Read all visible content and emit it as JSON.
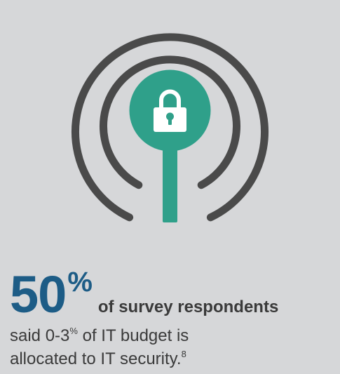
{
  "colors": {
    "background": "#d6d7d9",
    "arcs": "#4a4a4a",
    "lock_badge": "#2fa08a",
    "stat_number": "#1d5c86",
    "text": "#3a3a3a"
  },
  "graphic": {
    "icon": "padlock-signal-icon"
  },
  "stat": {
    "number": "50",
    "unit": "%",
    "headline": "of survey respondents"
  },
  "description": {
    "part1": "said 0-3",
    "part1_sup": "%",
    "part2": " of IT budget is",
    "line2": "allocated to IT security.",
    "footnote": "8"
  }
}
